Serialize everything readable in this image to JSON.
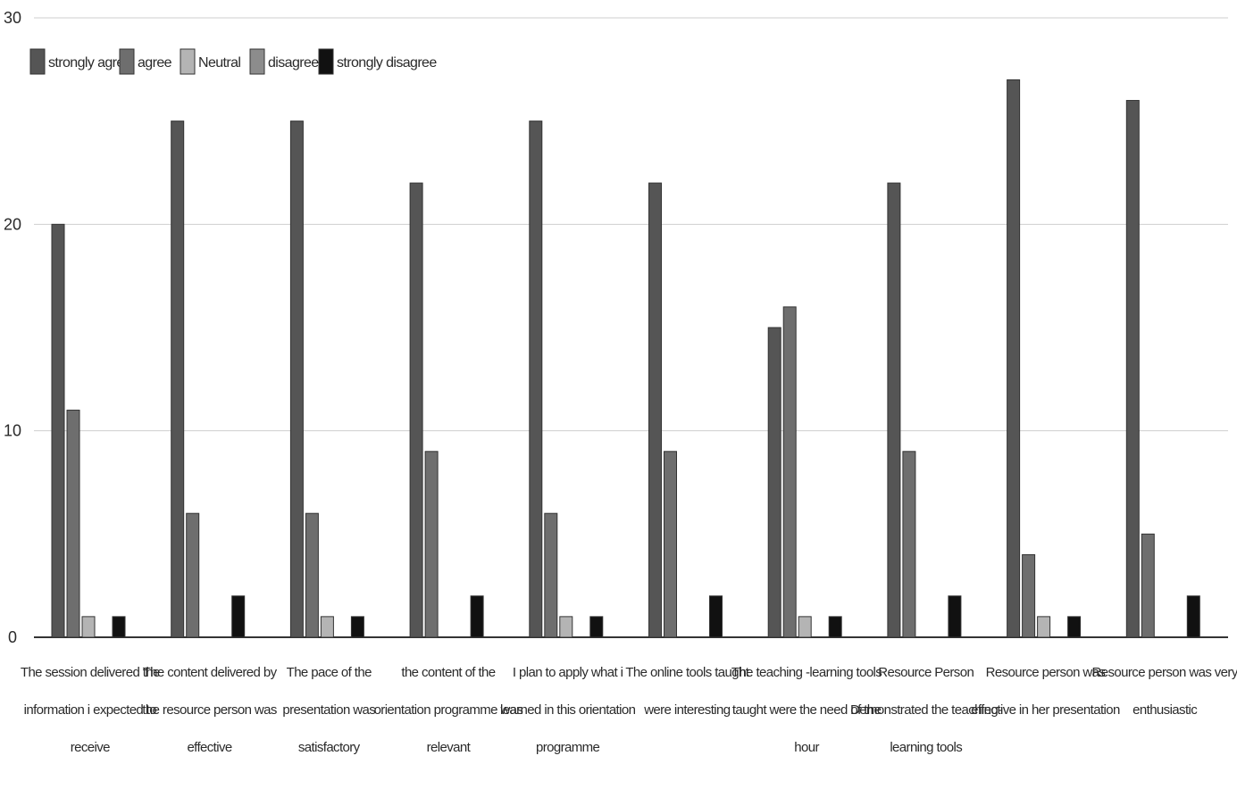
{
  "chart_data": {
    "type": "bar",
    "title": "",
    "xlabel": "",
    "ylabel": "",
    "ylim": [
      0,
      30
    ],
    "yticks": [
      0,
      10,
      20,
      30
    ],
    "grid": true,
    "legend_position": "top-left",
    "categories": [
      [
        "The session delivered the",
        "information i expected to",
        "receive"
      ],
      [
        "The content delivered by",
        "the resource person was",
        "effective"
      ],
      [
        "The pace of the",
        "presentation was",
        "satisfactory"
      ],
      [
        "the content of the",
        "orientation programme was",
        "relevant"
      ],
      [
        "I plan to apply what i",
        "learned in this orientation",
        "programme"
      ],
      [
        "The online tools taught",
        "were interesting"
      ],
      [
        "The teaching -learning tools",
        "taught were the need of the",
        "hour"
      ],
      [
        "Resource Person",
        "Demonstrated the teaching-",
        "learning tools"
      ],
      [
        "Resource person was",
        "effective in her presentation"
      ],
      [
        "Resource person was very",
        "enthusiastic"
      ]
    ],
    "series": [
      {
        "name": "strongly agree",
        "color": "#555555",
        "values": [
          20,
          25,
          25,
          22,
          25,
          22,
          15,
          22,
          27,
          26
        ]
      },
      {
        "name": "agree",
        "color": "#6e6e6e",
        "values": [
          11,
          6,
          6,
          9,
          6,
          9,
          16,
          9,
          4,
          5
        ]
      },
      {
        "name": "Neutral",
        "color": "#b4b4b4",
        "values": [
          1,
          0,
          1,
          0,
          1,
          0,
          1,
          0,
          1,
          0
        ]
      },
      {
        "name": "disagree",
        "color": "#8c8c8c",
        "values": [
          0,
          0,
          0,
          0,
          0,
          0,
          0,
          0,
          0,
          0
        ]
      },
      {
        "name": "strongly disagree",
        "color": "#111111",
        "values": [
          1,
          2,
          1,
          2,
          1,
          2,
          1,
          2,
          1,
          2
        ]
      }
    ]
  }
}
